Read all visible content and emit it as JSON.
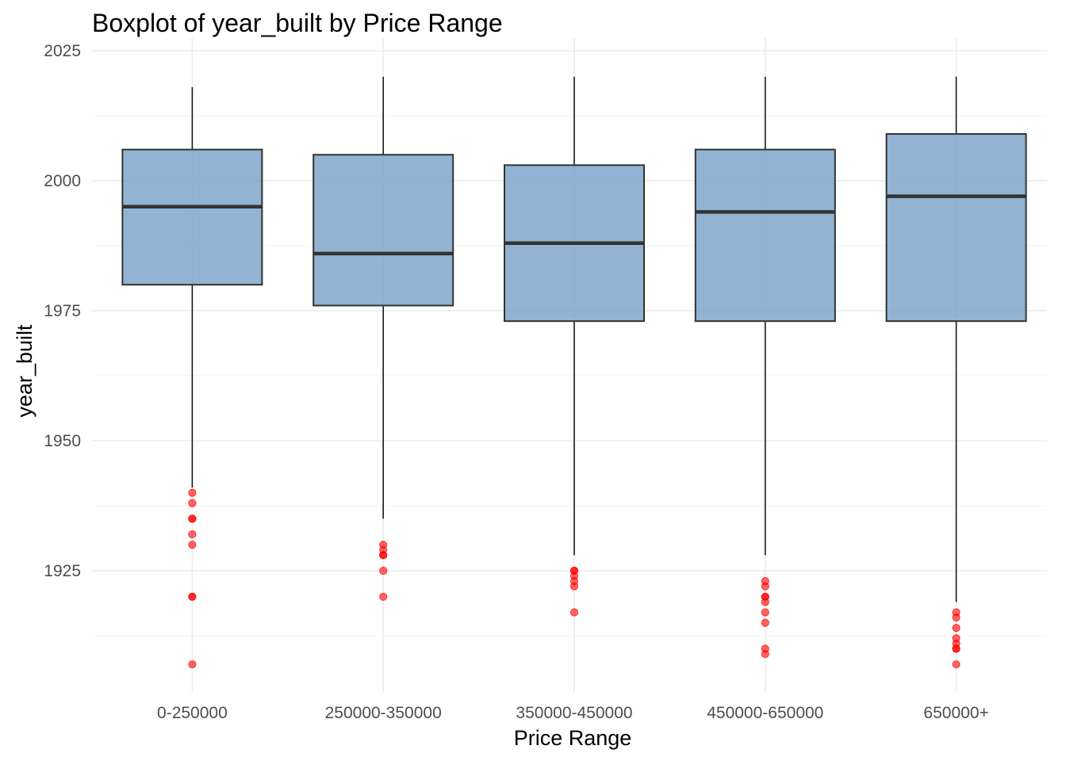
{
  "chart_data": {
    "type": "boxplot",
    "title": "Boxplot of year_built by Price Range",
    "xlabel": "Price Range",
    "ylabel": "year_built",
    "ylim": [
      1902,
      2025
    ],
    "yticks": [
      1925,
      1950,
      1975,
      2000,
      2025
    ],
    "grid": true,
    "legend": "none",
    "colors": {
      "box_fill": "#7aa2c8",
      "box_stroke": "#333333",
      "median": "#333333",
      "whisker": "#1a1a1a",
      "outlier": "#ff0000"
    },
    "categories": [
      "0-250000",
      "250000-350000",
      "350000-450000",
      "450000-650000",
      "650000+"
    ],
    "boxes": [
      {
        "category": "0-250000",
        "whisker_low": 1941,
        "q1": 1980,
        "median": 1995,
        "q3": 2006,
        "whisker_high": 2018,
        "outliers": [
          1940,
          1938,
          1935,
          1935,
          1932,
          1930,
          1920,
          1920,
          1907
        ]
      },
      {
        "category": "250000-350000",
        "whisker_low": 1935,
        "q1": 1976,
        "median": 1986,
        "q3": 2005,
        "whisker_high": 2020,
        "outliers": [
          1930,
          1929,
          1928,
          1928,
          1925,
          1920
        ]
      },
      {
        "category": "350000-450000",
        "whisker_low": 1928,
        "q1": 1973,
        "median": 1988,
        "q3": 2003,
        "whisker_high": 2020,
        "outliers": [
          1925,
          1925,
          1924,
          1923,
          1922,
          1917
        ]
      },
      {
        "category": "450000-650000",
        "whisker_low": 1928,
        "q1": 1973,
        "median": 1994,
        "q3": 2006,
        "whisker_high": 2020,
        "outliers": [
          1923,
          1922,
          1920,
          1920,
          1919,
          1917,
          1915,
          1910,
          1909
        ]
      },
      {
        "category": "650000+",
        "whisker_low": 1919,
        "q1": 1973,
        "median": 1997,
        "q3": 2009,
        "whisker_high": 2020,
        "outliers": [
          1917,
          1916,
          1914,
          1912,
          1911,
          1910,
          1910,
          1907
        ]
      }
    ]
  }
}
